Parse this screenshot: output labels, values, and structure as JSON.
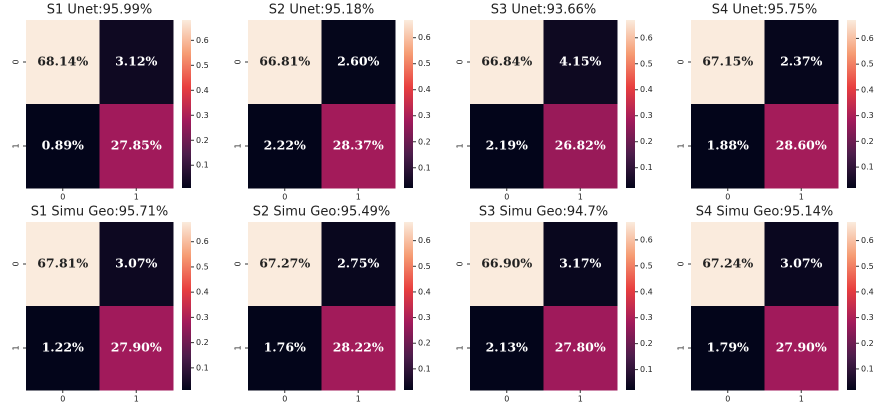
{
  "chart_data": [
    {
      "type": "heatmap",
      "title": "S1 Unet:95.99%",
      "x_categories": [
        "0",
        "1"
      ],
      "y_categories": [
        "0",
        "1"
      ],
      "values": [
        [
          0.6814,
          0.0312
        ],
        [
          0.0089,
          0.2785
        ]
      ],
      "value_labels": [
        [
          "68.14%",
          "3.12%"
        ],
        [
          "0.89%",
          "27.85%"
        ]
      ],
      "zlim": [
        0.0089,
        0.6814
      ],
      "zticks": [
        0.1,
        0.2,
        0.3,
        0.4,
        0.5,
        0.6
      ],
      "colormap": "rocket"
    },
    {
      "type": "heatmap",
      "title": "S2 Unet:95.18%",
      "x_categories": [
        "0",
        "1"
      ],
      "y_categories": [
        "0",
        "1"
      ],
      "values": [
        [
          0.6681,
          0.026
        ],
        [
          0.0222,
          0.2837
        ]
      ],
      "value_labels": [
        [
          "66.81%",
          "2.60%"
        ],
        [
          "2.22%",
          "28.37%"
        ]
      ],
      "zlim": [
        0.0222,
        0.6681
      ],
      "zticks": [
        0.1,
        0.2,
        0.3,
        0.4,
        0.5,
        0.6
      ],
      "colormap": "rocket"
    },
    {
      "type": "heatmap",
      "title": "S3 Unet:93.66%",
      "x_categories": [
        "0",
        "1"
      ],
      "y_categories": [
        "0",
        "1"
      ],
      "values": [
        [
          0.6684,
          0.0415
        ],
        [
          0.0219,
          0.2682
        ]
      ],
      "value_labels": [
        [
          "66.84%",
          "4.15%"
        ],
        [
          "2.19%",
          "26.82%"
        ]
      ],
      "zlim": [
        0.0219,
        0.6684
      ],
      "zticks": [
        0.1,
        0.2,
        0.3,
        0.4,
        0.5,
        0.6
      ],
      "colormap": "rocket"
    },
    {
      "type": "heatmap",
      "title": "S4 Unet:95.75%",
      "x_categories": [
        "0",
        "1"
      ],
      "y_categories": [
        "0",
        "1"
      ],
      "values": [
        [
          0.6715,
          0.0237
        ],
        [
          0.0188,
          0.286
        ]
      ],
      "value_labels": [
        [
          "67.15%",
          "2.37%"
        ],
        [
          "1.88%",
          "28.60%"
        ]
      ],
      "zlim": [
        0.0188,
        0.6715
      ],
      "zticks": [
        0.1,
        0.2,
        0.3,
        0.4,
        0.5,
        0.6
      ],
      "colormap": "rocket"
    },
    {
      "type": "heatmap",
      "title": "S1 Simu Geo:95.71%",
      "x_categories": [
        "0",
        "1"
      ],
      "y_categories": [
        "0",
        "1"
      ],
      "values": [
        [
          0.6781,
          0.0307
        ],
        [
          0.0122,
          0.279
        ]
      ],
      "value_labels": [
        [
          "67.81%",
          "3.07%"
        ],
        [
          "1.22%",
          "27.90%"
        ]
      ],
      "zlim": [
        0.0122,
        0.6781
      ],
      "zticks": [
        0.1,
        0.2,
        0.3,
        0.4,
        0.5,
        0.6
      ],
      "colormap": "rocket"
    },
    {
      "type": "heatmap",
      "title": "S2 Simu Geo:95.49%",
      "x_categories": [
        "0",
        "1"
      ],
      "y_categories": [
        "0",
        "1"
      ],
      "values": [
        [
          0.6727,
          0.0275
        ],
        [
          0.0176,
          0.2822
        ]
      ],
      "value_labels": [
        [
          "67.27%",
          "2.75%"
        ],
        [
          "1.76%",
          "28.22%"
        ]
      ],
      "zlim": [
        0.0176,
        0.6727
      ],
      "zticks": [
        0.1,
        0.2,
        0.3,
        0.4,
        0.5,
        0.6
      ],
      "colormap": "rocket"
    },
    {
      "type": "heatmap",
      "title": "S3 Simu Geo:94.7%",
      "x_categories": [
        "0",
        "1"
      ],
      "y_categories": [
        "0",
        "1"
      ],
      "values": [
        [
          0.669,
          0.0317
        ],
        [
          0.0213,
          0.278
        ]
      ],
      "value_labels": [
        [
          "66.90%",
          "3.17%"
        ],
        [
          "2.13%",
          "27.80%"
        ]
      ],
      "zlim": [
        0.0213,
        0.669
      ],
      "zticks": [
        0.1,
        0.2,
        0.3,
        0.4,
        0.5,
        0.6
      ],
      "colormap": "rocket"
    },
    {
      "type": "heatmap",
      "title": "S4 Simu Geo:95.14%",
      "x_categories": [
        "0",
        "1"
      ],
      "y_categories": [
        "0",
        "1"
      ],
      "values": [
        [
          0.6724,
          0.0307
        ],
        [
          0.0179,
          0.279
        ]
      ],
      "value_labels": [
        [
          "67.24%",
          "3.07%"
        ],
        [
          "1.79%",
          "27.90%"
        ]
      ],
      "zlim": [
        0.0179,
        0.6724
      ],
      "zticks": [
        0.1,
        0.2,
        0.3,
        0.4,
        0.5,
        0.6
      ],
      "colormap": "rocket"
    }
  ]
}
